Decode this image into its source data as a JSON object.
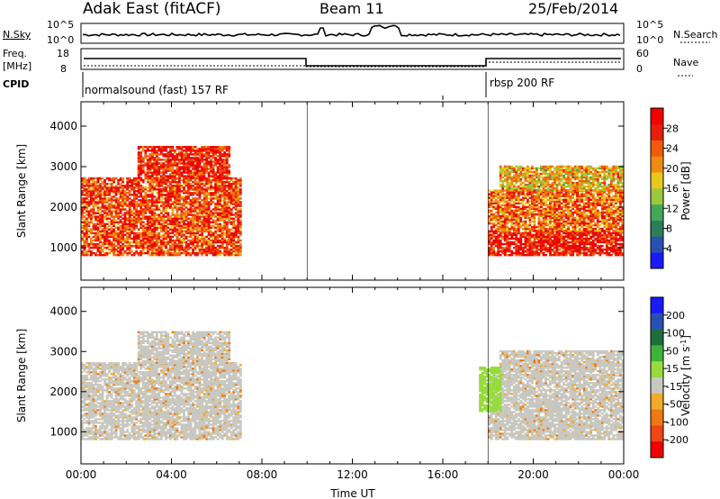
{
  "header": {
    "station": "Adak East (fitACF)",
    "beam": "Beam 11",
    "date": "25/Feb/2014"
  },
  "status_panels": {
    "nsky_label": "N.Sky",
    "nsearch_label": "N.Search",
    "left_ticks": [
      "10^5",
      "10^0"
    ],
    "right_ticks": [
      "10^5",
      "10^0"
    ],
    "freq_label": "Freq.",
    "freq_unit": "[MHz]",
    "freq_ticks": [
      "18",
      "8"
    ],
    "nave_label": "Nave",
    "nave_ticks": [
      "60",
      "0"
    ],
    "cpid_label": "CPID",
    "cpid_segments": [
      "normalsound (fast) 157 RF",
      "rbsp 200 RF"
    ]
  },
  "colors": {
    "power_scale": [
      "#1a1aff",
      "#2850b4",
      "#2e7d5a",
      "#41a85a",
      "#9bc83c",
      "#e6c81e",
      "#f08c14",
      "#f05a0a",
      "#e61e0a",
      "#f00000"
    ],
    "velocity_scale": [
      "#1a1aff",
      "#2850b4",
      "#1e6e3c",
      "#3cb43c",
      "#96dc3c",
      "#c8c8c0",
      "#f0aa28",
      "#f07814",
      "#f04614",
      "#f00000"
    ],
    "ground_scatter": "#c8c8c0"
  },
  "chart_data": [
    {
      "type": "heatmap",
      "name": "power",
      "xlabel": "",
      "ylabel": "Slant Range [km]",
      "x_ticks": [
        "00:00",
        "04:00",
        "08:00",
        "12:00",
        "16:00",
        "20:00",
        "00:00"
      ],
      "y_ticks": [
        "1000",
        "2000",
        "3000",
        "4000"
      ],
      "ylim": [
        200,
        4600
      ],
      "colorbar_label": "Power [dB]",
      "colorbar_ticks": [
        "4",
        "8",
        "12",
        "16",
        "20",
        "24",
        "28"
      ],
      "colorbar_range": [
        0,
        30
      ],
      "cpid_change_hours": [
        10.0,
        18.0
      ],
      "regions": [
        {
          "t0": 0.0,
          "t1": 7.0,
          "r0": 800,
          "r1": 2700,
          "level": 24
        },
        {
          "t0": 2.5,
          "t1": 6.5,
          "r0": 2700,
          "r1": 3500,
          "level": 26
        },
        {
          "t0": 18.0,
          "t1": 24.0,
          "r0": 800,
          "r1": 1400,
          "level": 27
        },
        {
          "t0": 18.0,
          "t1": 24.0,
          "r0": 1400,
          "r1": 2400,
          "level": 22
        },
        {
          "t0": 18.5,
          "t1": 24.0,
          "r0": 2400,
          "r1": 3000,
          "level": 18
        }
      ]
    },
    {
      "type": "heatmap",
      "name": "velocity",
      "xlabel": "Time UT",
      "ylabel": "Slant Range [km]",
      "x_ticks": [
        "00:00",
        "04:00",
        "08:00",
        "12:00",
        "16:00",
        "20:00",
        "00:00"
      ],
      "y_ticks": [
        "1000",
        "2000",
        "3000",
        "4000"
      ],
      "ylim": [
        200,
        4600
      ],
      "colorbar_label": "Velocity [m s^-1]",
      "colorbar_ticks": [
        "200",
        "100",
        "50",
        "15",
        "-15",
        "-50",
        "-100",
        "-200"
      ],
      "colorbar_range": [
        -250,
        250
      ],
      "cpid_change_hours": [
        18.0
      ],
      "regions": [
        {
          "t0": 0.0,
          "t1": 7.0,
          "r0": 800,
          "r1": 2700,
          "level": 0
        },
        {
          "t0": 2.5,
          "t1": 6.5,
          "r0": 2700,
          "r1": 3500,
          "level": 0
        },
        {
          "t0": 18.0,
          "t1": 24.0,
          "r0": 800,
          "r1": 2400,
          "level": 0
        },
        {
          "t0": 18.5,
          "t1": 24.0,
          "r0": 2400,
          "r1": 3000,
          "level": 0
        },
        {
          "t0": 17.6,
          "t1": 18.6,
          "r0": 1500,
          "r1": 2600,
          "level": 40
        }
      ]
    }
  ]
}
